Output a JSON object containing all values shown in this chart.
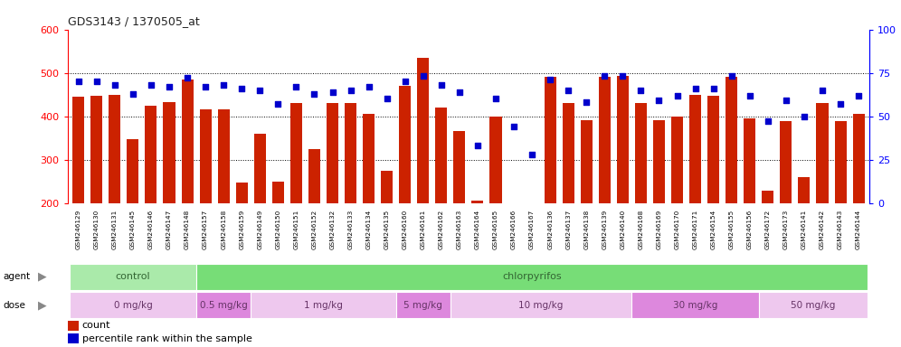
{
  "title": "GDS3143 / 1370505_at",
  "samples": [
    "GSM246129",
    "GSM246130",
    "GSM246131",
    "GSM246145",
    "GSM246146",
    "GSM246147",
    "GSM246148",
    "GSM246157",
    "GSM246158",
    "GSM246159",
    "GSM246149",
    "GSM246150",
    "GSM246151",
    "GSM246152",
    "GSM246132",
    "GSM246133",
    "GSM246134",
    "GSM246135",
    "GSM246160",
    "GSM246161",
    "GSM246162",
    "GSM246163",
    "GSM246164",
    "GSM246165",
    "GSM246166",
    "GSM246167",
    "GSM246136",
    "GSM246137",
    "GSM246138",
    "GSM246139",
    "GSM246140",
    "GSM246168",
    "GSM246169",
    "GSM246170",
    "GSM246171",
    "GSM246154",
    "GSM246155",
    "GSM246156",
    "GSM246172",
    "GSM246173",
    "GSM246141",
    "GSM246142",
    "GSM246143",
    "GSM246144"
  ],
  "counts": [
    445,
    447,
    450,
    348,
    425,
    433,
    485,
    415,
    415,
    248,
    360,
    250,
    430,
    325,
    430,
    430,
    405,
    275,
    470,
    535,
    420,
    365,
    205,
    400,
    200,
    200,
    490,
    430,
    390,
    490,
    493,
    430,
    390,
    400,
    450,
    448,
    490,
    395,
    228,
    388,
    260,
    430,
    388,
    405
  ],
  "percentiles": [
    70,
    70,
    68,
    63,
    68,
    67,
    72,
    67,
    68,
    66,
    65,
    57,
    67,
    63,
    64,
    65,
    67,
    60,
    70,
    73,
    68,
    64,
    33,
    60,
    44,
    28,
    71,
    65,
    58,
    73,
    73,
    65,
    59,
    62,
    66,
    66,
    73,
    62,
    47,
    59,
    50,
    65,
    57,
    62
  ],
  "ylim_left": [
    200,
    600
  ],
  "ylim_right": [
    0,
    100
  ],
  "yticks_left": [
    200,
    300,
    400,
    500,
    600
  ],
  "yticks_right": [
    0,
    25,
    50,
    75,
    100
  ],
  "bar_color": "#CC2200",
  "dot_color": "#0000CC",
  "agent_groups": [
    {
      "label": "control",
      "start": 0,
      "end": 7,
      "color": "#AAEAAA"
    },
    {
      "label": "chlorpyrifos",
      "start": 7,
      "end": 44,
      "color": "#77DD77"
    }
  ],
  "dose_groups": [
    {
      "label": "0 mg/kg",
      "start": 0,
      "end": 7,
      "color": "#EEC8EE"
    },
    {
      "label": "0.5 mg/kg",
      "start": 7,
      "end": 10,
      "color": "#DD88DD"
    },
    {
      "label": "1 mg/kg",
      "start": 10,
      "end": 18,
      "color": "#EEC8EE"
    },
    {
      "label": "5 mg/kg",
      "start": 18,
      "end": 21,
      "color": "#DD88DD"
    },
    {
      "label": "10 mg/kg",
      "start": 21,
      "end": 31,
      "color": "#EEC8EE"
    },
    {
      "label": "30 mg/kg",
      "start": 31,
      "end": 38,
      "color": "#DD88DD"
    },
    {
      "label": "50 mg/kg",
      "start": 38,
      "end": 44,
      "color": "#EEC8EE"
    }
  ]
}
